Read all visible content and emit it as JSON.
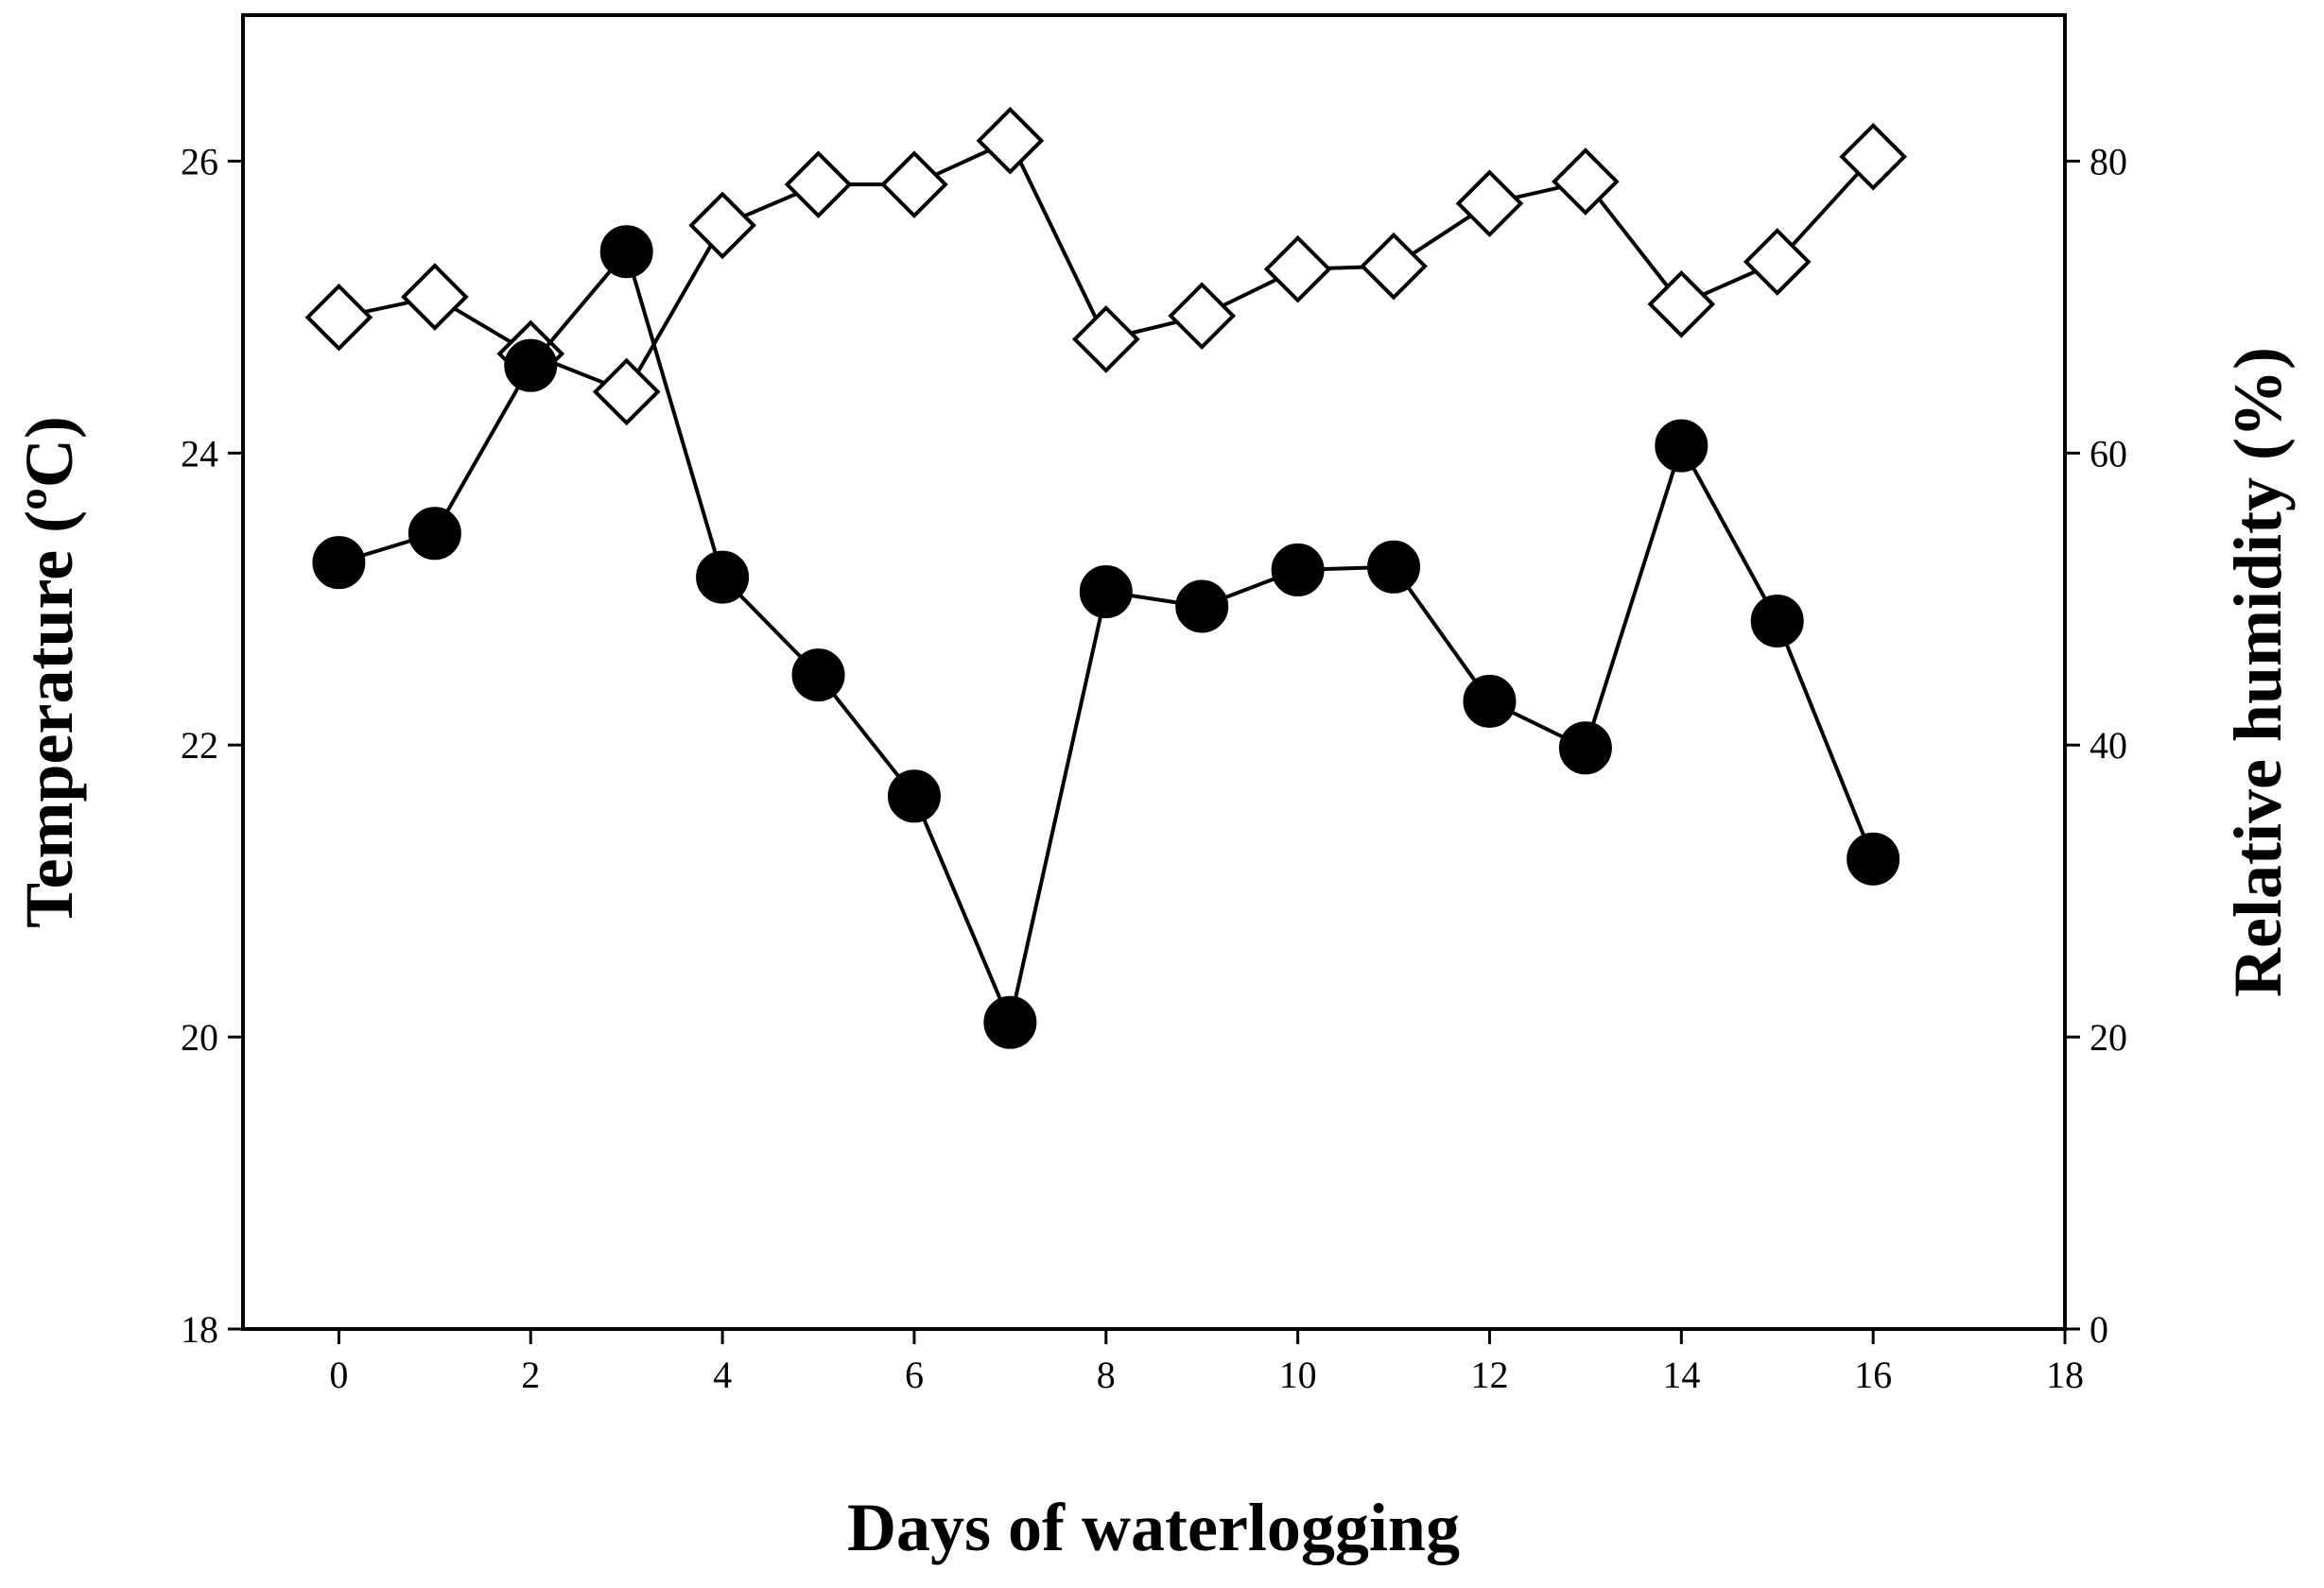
{
  "chart_data": {
    "type": "line",
    "title": "",
    "xlabel": "Days of waterlogging",
    "ylabel_left": "Temperature (ºC)",
    "ylabel_right": "Relative humidity (%)",
    "xlim": [
      -1,
      18
    ],
    "ylim_left": [
      18,
      27
    ],
    "ylim_right": [
      0,
      90
    ],
    "x_ticks": [
      0,
      2,
      4,
      6,
      8,
      10,
      12,
      14,
      16,
      18
    ],
    "y_left_ticks": [
      18,
      20,
      22,
      24,
      26
    ],
    "y_right_ticks": [
      0,
      20,
      40,
      60,
      80
    ],
    "grid": false,
    "series": [
      {
        "name": "Temperature",
        "axis": "left",
        "marker": "filled-circle",
        "color": "#000000",
        "x": [
          0,
          1,
          2,
          3,
          4,
          5,
          6,
          7,
          8,
          9,
          10,
          11,
          12,
          13,
          14,
          15,
          16
        ],
        "values": [
          23.25,
          23.45,
          24.6,
          25.38,
          23.15,
          22.48,
          21.65,
          20.1,
          23.05,
          22.95,
          23.2,
          23.22,
          22.3,
          21.98,
          24.05,
          22.85,
          21.22
        ]
      },
      {
        "name": "Relative humidity",
        "axis": "right",
        "marker": "open-diamond",
        "color": "#000000",
        "x": [
          0,
          1,
          2,
          3,
          4,
          5,
          6,
          7,
          8,
          9,
          10,
          11,
          12,
          13,
          14,
          15,
          16
        ],
        "values": [
          69.3,
          70.7,
          66.8,
          64.2,
          75.6,
          78.4,
          78.4,
          81.4,
          67.8,
          69.4,
          72.6,
          72.8,
          77.1,
          78.6,
          70.2,
          73.1,
          80.3
        ]
      }
    ]
  }
}
